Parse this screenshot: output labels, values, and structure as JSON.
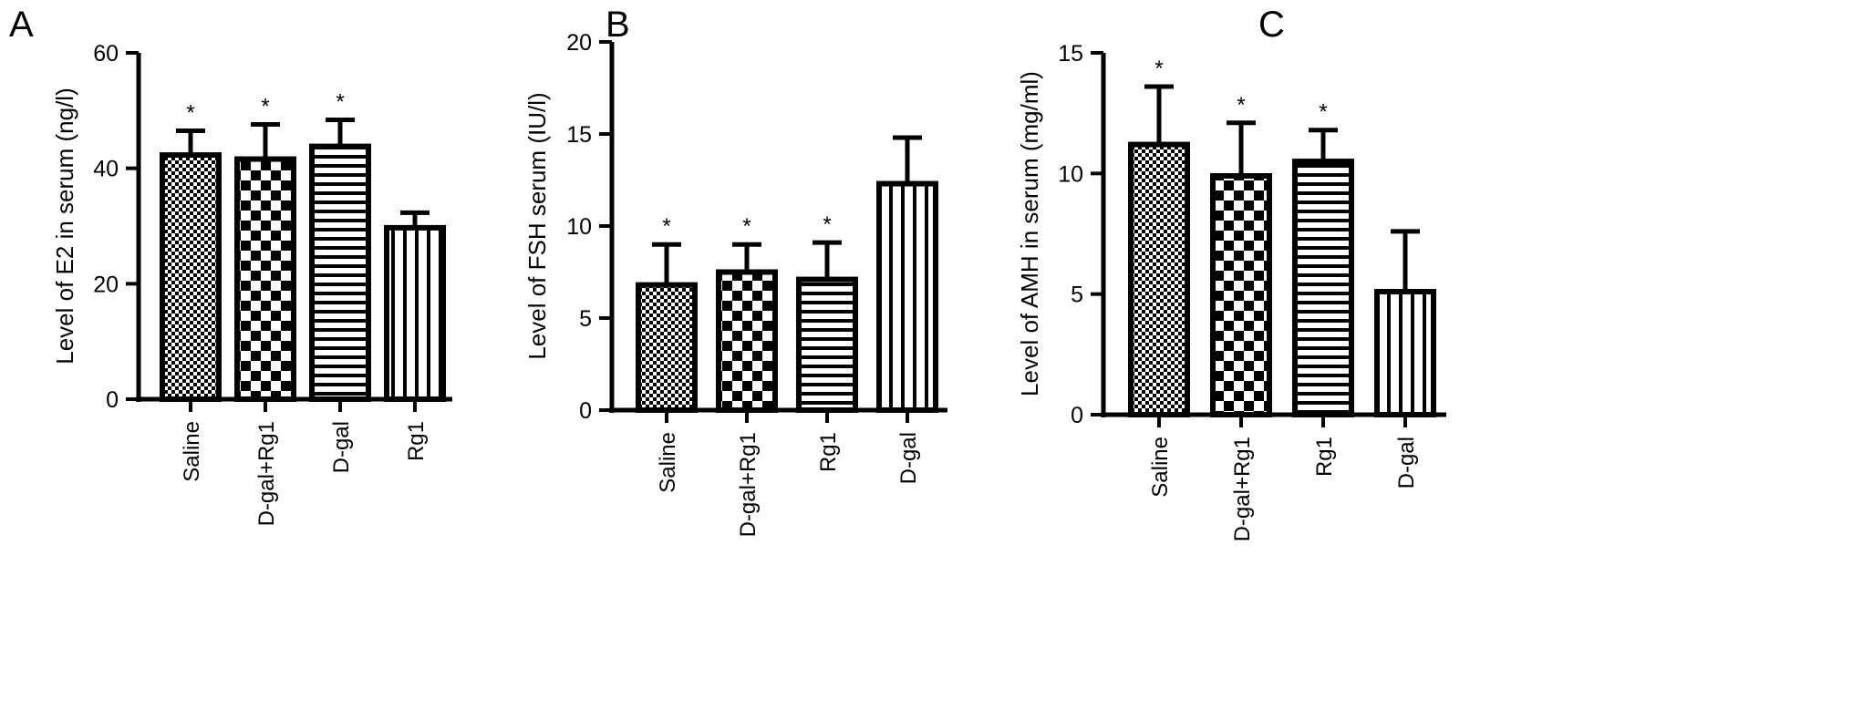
{
  "panels": [
    {
      "letter": "A"
    },
    {
      "letter": "B"
    },
    {
      "letter": "C"
    }
  ],
  "chart_data": [
    {
      "type": "bar",
      "ylabel": "Level of E2 in serum (ng/l)",
      "ylim": [
        0,
        60
      ],
      "yticks": [
        0,
        20,
        40,
        60
      ],
      "categories": [
        "Saline",
        "D-gal+Rg1",
        "D-gal",
        "Rg1"
      ],
      "values": [
        42.3,
        41.6,
        43.8,
        29.7
      ],
      "errors": [
        4.2,
        6.0,
        4.6,
        2.6
      ],
      "significance": [
        "*",
        "*",
        "*",
        ""
      ],
      "patterns": [
        "fine-check",
        "checker",
        "hstripe",
        "vstripe"
      ]
    },
    {
      "type": "bar",
      "ylabel": "Level of FSH serum (IU/l)",
      "ylim": [
        0,
        20
      ],
      "yticks": [
        0,
        5,
        10,
        15,
        20
      ],
      "categories": [
        "Saline",
        "D-gal+Rg1",
        "Rg1",
        "D-gal"
      ],
      "values": [
        6.8,
        7.5,
        7.1,
        12.3
      ],
      "errors": [
        2.2,
        1.5,
        2.0,
        2.5
      ],
      "significance": [
        "*",
        "*",
        "*",
        ""
      ],
      "patterns": [
        "fine-check",
        "checker",
        "hstripe",
        "vstripe"
      ]
    },
    {
      "type": "bar",
      "ylabel": "Level of AMH in serum (mg/ml)",
      "ylim": [
        0,
        15
      ],
      "yticks": [
        0,
        5,
        10,
        15
      ],
      "categories": [
        "Saline",
        "D-gal+Rg1",
        "Rg1",
        "D-gal"
      ],
      "values": [
        11.2,
        9.9,
        10.5,
        5.1
      ],
      "errors": [
        2.4,
        2.2,
        1.3,
        2.5
      ],
      "significance": [
        "*",
        "*",
        "*",
        ""
      ],
      "patterns": [
        "fine-check",
        "checker",
        "hstripe",
        "vstripe"
      ]
    }
  ]
}
